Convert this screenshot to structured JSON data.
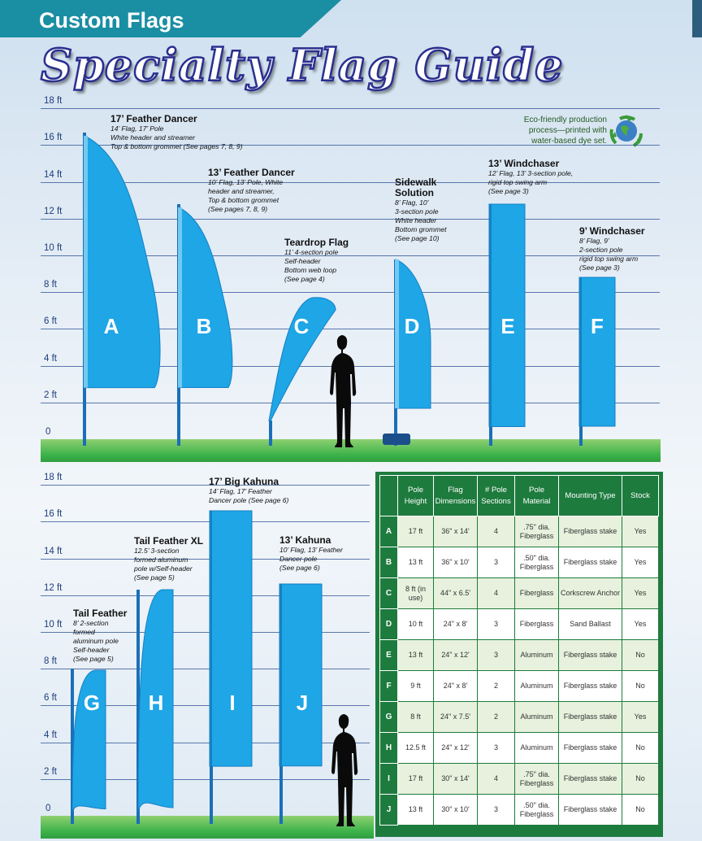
{
  "banner": {
    "title": "Custom Flags"
  },
  "title": "Specialty Flag Guide",
  "eco_note": "Eco-friendly production process—printed with water-based dye set.",
  "colors": {
    "banner": "#1a8ea3",
    "flag": "#1ea6e6",
    "pole": "#1b6fb8",
    "grid": "#2a4f92",
    "ground": "#3bb24a",
    "table_header": "#1e7b3e",
    "title_outline": "#2a2f8f"
  },
  "top_panel": {
    "axis_labels": [
      "18 ft",
      "16 ft",
      "14 ft",
      "12 ft",
      "10 ft",
      "8 ft",
      "6 ft",
      "4 ft",
      "2 ft",
      "0"
    ],
    "flags": [
      {
        "letter": "A",
        "name": "17’ Feather Dancer",
        "details": [
          "14’ Flag, 17’ Pole",
          "White header and streamer",
          "Top & bottom grommet (See pages 7, 8, 9)"
        ]
      },
      {
        "letter": "B",
        "name": "13’ Feather Dancer",
        "details": [
          "10’ Flag, 13’ Pole, White",
          "header and streamer,",
          "Top & bottom grommet",
          "(See pages 7, 8, 9)"
        ]
      },
      {
        "letter": "C",
        "name": "Teardrop Flag",
        "details": [
          "11’ 4-section pole",
          "Self-header",
          "Bottom web loop",
          "(See page 4)"
        ]
      },
      {
        "letter": "D",
        "name": "Sidewalk Solution",
        "details": [
          "8’ Flag, 10’",
          "3-section pole",
          "White header",
          "Bottom grommet",
          "(See page 10)"
        ]
      },
      {
        "letter": "E",
        "name": "13’ Windchaser",
        "details": [
          "12’ Flag, 13’ 3-section pole,",
          "rigid top swing arm",
          "(See page 3)"
        ]
      },
      {
        "letter": "F",
        "name": "9’ Windchaser",
        "details": [
          "8’ Flag, 9’",
          "2-section pole",
          "rigid top swing arm",
          "(See page 3)"
        ]
      }
    ]
  },
  "bottom_panel": {
    "axis_labels": [
      "18 ft",
      "16 ft",
      "14 ft",
      "12 ft",
      "10 ft",
      "8 ft",
      "6 ft",
      "4 ft",
      "2 ft",
      "0"
    ],
    "flags": [
      {
        "letter": "G",
        "name": "Tail Feather",
        "details": [
          "8’ 2-section",
          "formed",
          "aluminum pole",
          "Self-header",
          "(See page 5)"
        ]
      },
      {
        "letter": "H",
        "name": "Tail Feather XL",
        "details": [
          "12.5’ 3-section",
          "formed aluminum",
          "pole w/Self-header",
          "(See page 5)"
        ]
      },
      {
        "letter": "I",
        "name": "17’ Big Kahuna",
        "details": [
          "14’ Flag, 17’ Feather",
          "Dancer pole (See page 6)"
        ]
      },
      {
        "letter": "J",
        "name": "13’ Kahuna",
        "details": [
          "10’ Flag, 13’ Feather",
          "Dancer pole",
          "(See page 6)"
        ]
      }
    ]
  },
  "table": {
    "headers": [
      "",
      "Pole Height",
      "Flag Dimensions",
      "# Pole Sections",
      "Pole Material",
      "Mounting Type",
      "Stock"
    ],
    "rows": [
      [
        "A",
        "17 ft",
        "36\" x 14'",
        "4",
        ".75\" dia. Fiberglass",
        "Fiberglass stake",
        "Yes"
      ],
      [
        "B",
        "13 ft",
        "36\" x 10'",
        "3",
        ".50\" dia. Fiberglass",
        "Fiberglass stake",
        "Yes"
      ],
      [
        "C",
        "8 ft (in use)",
        "44\" x 6.5'",
        "4",
        "Fiberglass",
        "Corkscrew Anchor",
        "Yes"
      ],
      [
        "D",
        "10 ft",
        "24\" x 8'",
        "3",
        "Fiberglass",
        "Sand Ballast",
        "Yes"
      ],
      [
        "E",
        "13 ft",
        "24\" x 12'",
        "3",
        "Aluminum",
        "Fiberglass stake",
        "No"
      ],
      [
        "F",
        "9 ft",
        "24\" x 8'",
        "2",
        "Aluminum",
        "Fiberglass stake",
        "No"
      ],
      [
        "G",
        "8 ft",
        "24\" x 7.5'",
        "2",
        "Aluminum",
        "Fiberglass stake",
        "Yes"
      ],
      [
        "H",
        "12.5 ft",
        "24\" x 12'",
        "3",
        "Aluminum",
        "Fiberglass stake",
        "No"
      ],
      [
        "I",
        "17 ft",
        "30\" x 14'",
        "4",
        ".75\" dia. Fiberglass",
        "Fiberglass stake",
        "No"
      ],
      [
        "J",
        "13 ft",
        "30\" x 10'",
        "3",
        ".50\" dia. Fiberglass",
        "Fiberglass stake",
        "No"
      ]
    ]
  }
}
